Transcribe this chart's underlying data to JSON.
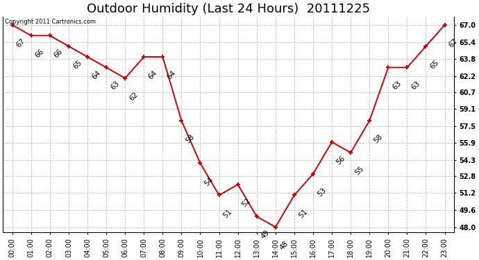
{
  "title": "Outdoor Humidity (Last 24 Hours)  20111225",
  "copyright": "Copyright 2011 Cartronics.com",
  "x_labels": [
    "00:00",
    "01:00",
    "02:00",
    "03:00",
    "04:00",
    "05:00",
    "06:00",
    "07:00",
    "08:00",
    "09:00",
    "10:00",
    "11:00",
    "12:00",
    "13:00",
    "14:00",
    "15:00",
    "16:00",
    "17:00",
    "18:00",
    "19:00",
    "20:00",
    "21:00",
    "22:00",
    "23:00"
  ],
  "y_values": [
    67,
    66,
    66,
    65,
    64,
    63,
    62,
    64,
    64,
    58,
    54,
    51,
    52,
    49,
    48,
    51,
    53,
    56,
    55,
    58,
    63,
    63,
    65,
    67
  ],
  "y_labels": [
    "48.0",
    "49.6",
    "51.2",
    "52.8",
    "54.3",
    "55.9",
    "57.5",
    "59.1",
    "60.7",
    "62.2",
    "63.8",
    "65.4",
    "67.0"
  ],
  "y_ticks": [
    48.0,
    49.6,
    51.2,
    52.8,
    54.3,
    55.9,
    57.5,
    59.1,
    60.7,
    62.2,
    63.8,
    65.4,
    67.0
  ],
  "ylim": [
    47.5,
    67.8
  ],
  "line_color": "#cc0000",
  "bg_color": "#ffffff",
  "grid_color": "#bbbbbb",
  "title_fontsize": 13,
  "tick_fontsize": 7,
  "annot_fontsize": 7.5
}
